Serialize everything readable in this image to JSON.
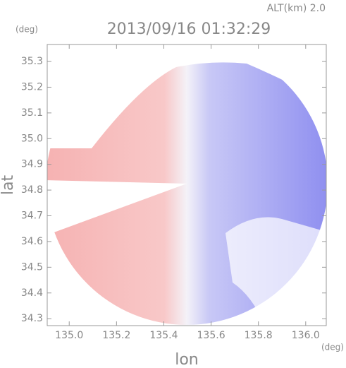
{
  "chart_data": {
    "type": "radar-map",
    "title": "2013/09/16 01:32:29",
    "altitude_label": "ALT(km) 2.0",
    "y_unit": "(deg)",
    "x_unit": "(deg)",
    "x_label": "lon",
    "y_label": "lat",
    "xlim": [
      134.907,
      136.087
    ],
    "ylim": [
      34.273,
      35.366
    ],
    "xticks": [
      {
        "value": 135.0,
        "label": "135.0"
      },
      135.2,
      135.4,
      135.6,
      135.8,
      {
        "value": 136.0,
        "label": "136.0"
      }
    ],
    "yticks": [
      34.3,
      34.4,
      34.5,
      34.6,
      34.7,
      34.8,
      34.9,
      {
        "value": 35.0,
        "label": "35.0"
      },
      35.1,
      35.2,
      35.3
    ]
  }
}
